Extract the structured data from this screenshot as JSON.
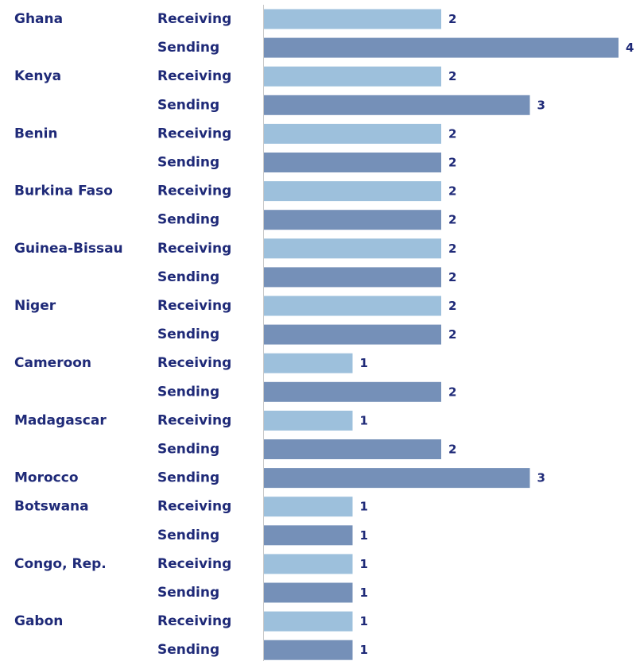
{
  "chart_data": {
    "type": "bar",
    "orientation": "horizontal",
    "title": "",
    "xlabel": "",
    "ylabel": "",
    "xlim": [
      0,
      4
    ],
    "grid": false,
    "legend": "none",
    "colors": {
      "Receiving": "#9dc0dc",
      "Sending": "#7590b8",
      "text": "#1f2a78",
      "axis": "#c8c8c8"
    },
    "groups": [
      {
        "country": "Ghana",
        "bars": [
          {
            "type": "Receiving",
            "value": 2
          },
          {
            "type": "Sending",
            "value": 4
          }
        ]
      },
      {
        "country": "Kenya",
        "bars": [
          {
            "type": "Receiving",
            "value": 2
          },
          {
            "type": "Sending",
            "value": 3
          }
        ]
      },
      {
        "country": "Benin",
        "bars": [
          {
            "type": "Receiving",
            "value": 2
          },
          {
            "type": "Sending",
            "value": 2
          }
        ]
      },
      {
        "country": "Burkina Faso",
        "bars": [
          {
            "type": "Receiving",
            "value": 2
          },
          {
            "type": "Sending",
            "value": 2
          }
        ]
      },
      {
        "country": "Guinea-Bissau",
        "bars": [
          {
            "type": "Receiving",
            "value": 2
          },
          {
            "type": "Sending",
            "value": 2
          }
        ]
      },
      {
        "country": "Niger",
        "bars": [
          {
            "type": "Receiving",
            "value": 2
          },
          {
            "type": "Sending",
            "value": 2
          }
        ]
      },
      {
        "country": "Cameroon",
        "bars": [
          {
            "type": "Receiving",
            "value": 1
          },
          {
            "type": "Sending",
            "value": 2
          }
        ]
      },
      {
        "country": "Madagascar",
        "bars": [
          {
            "type": "Receiving",
            "value": 1
          },
          {
            "type": "Sending",
            "value": 2
          }
        ]
      },
      {
        "country": "Morocco",
        "bars": [
          {
            "type": "Sending",
            "value": 3
          }
        ]
      },
      {
        "country": "Botswana",
        "bars": [
          {
            "type": "Receiving",
            "value": 1
          },
          {
            "type": "Sending",
            "value": 1
          }
        ]
      },
      {
        "country": "Congo, Rep.",
        "bars": [
          {
            "type": "Receiving",
            "value": 1
          },
          {
            "type": "Sending",
            "value": 1
          }
        ]
      },
      {
        "country": "Gabon",
        "bars": [
          {
            "type": "Receiving",
            "value": 1
          },
          {
            "type": "Sending",
            "value": 1
          }
        ]
      }
    ]
  }
}
